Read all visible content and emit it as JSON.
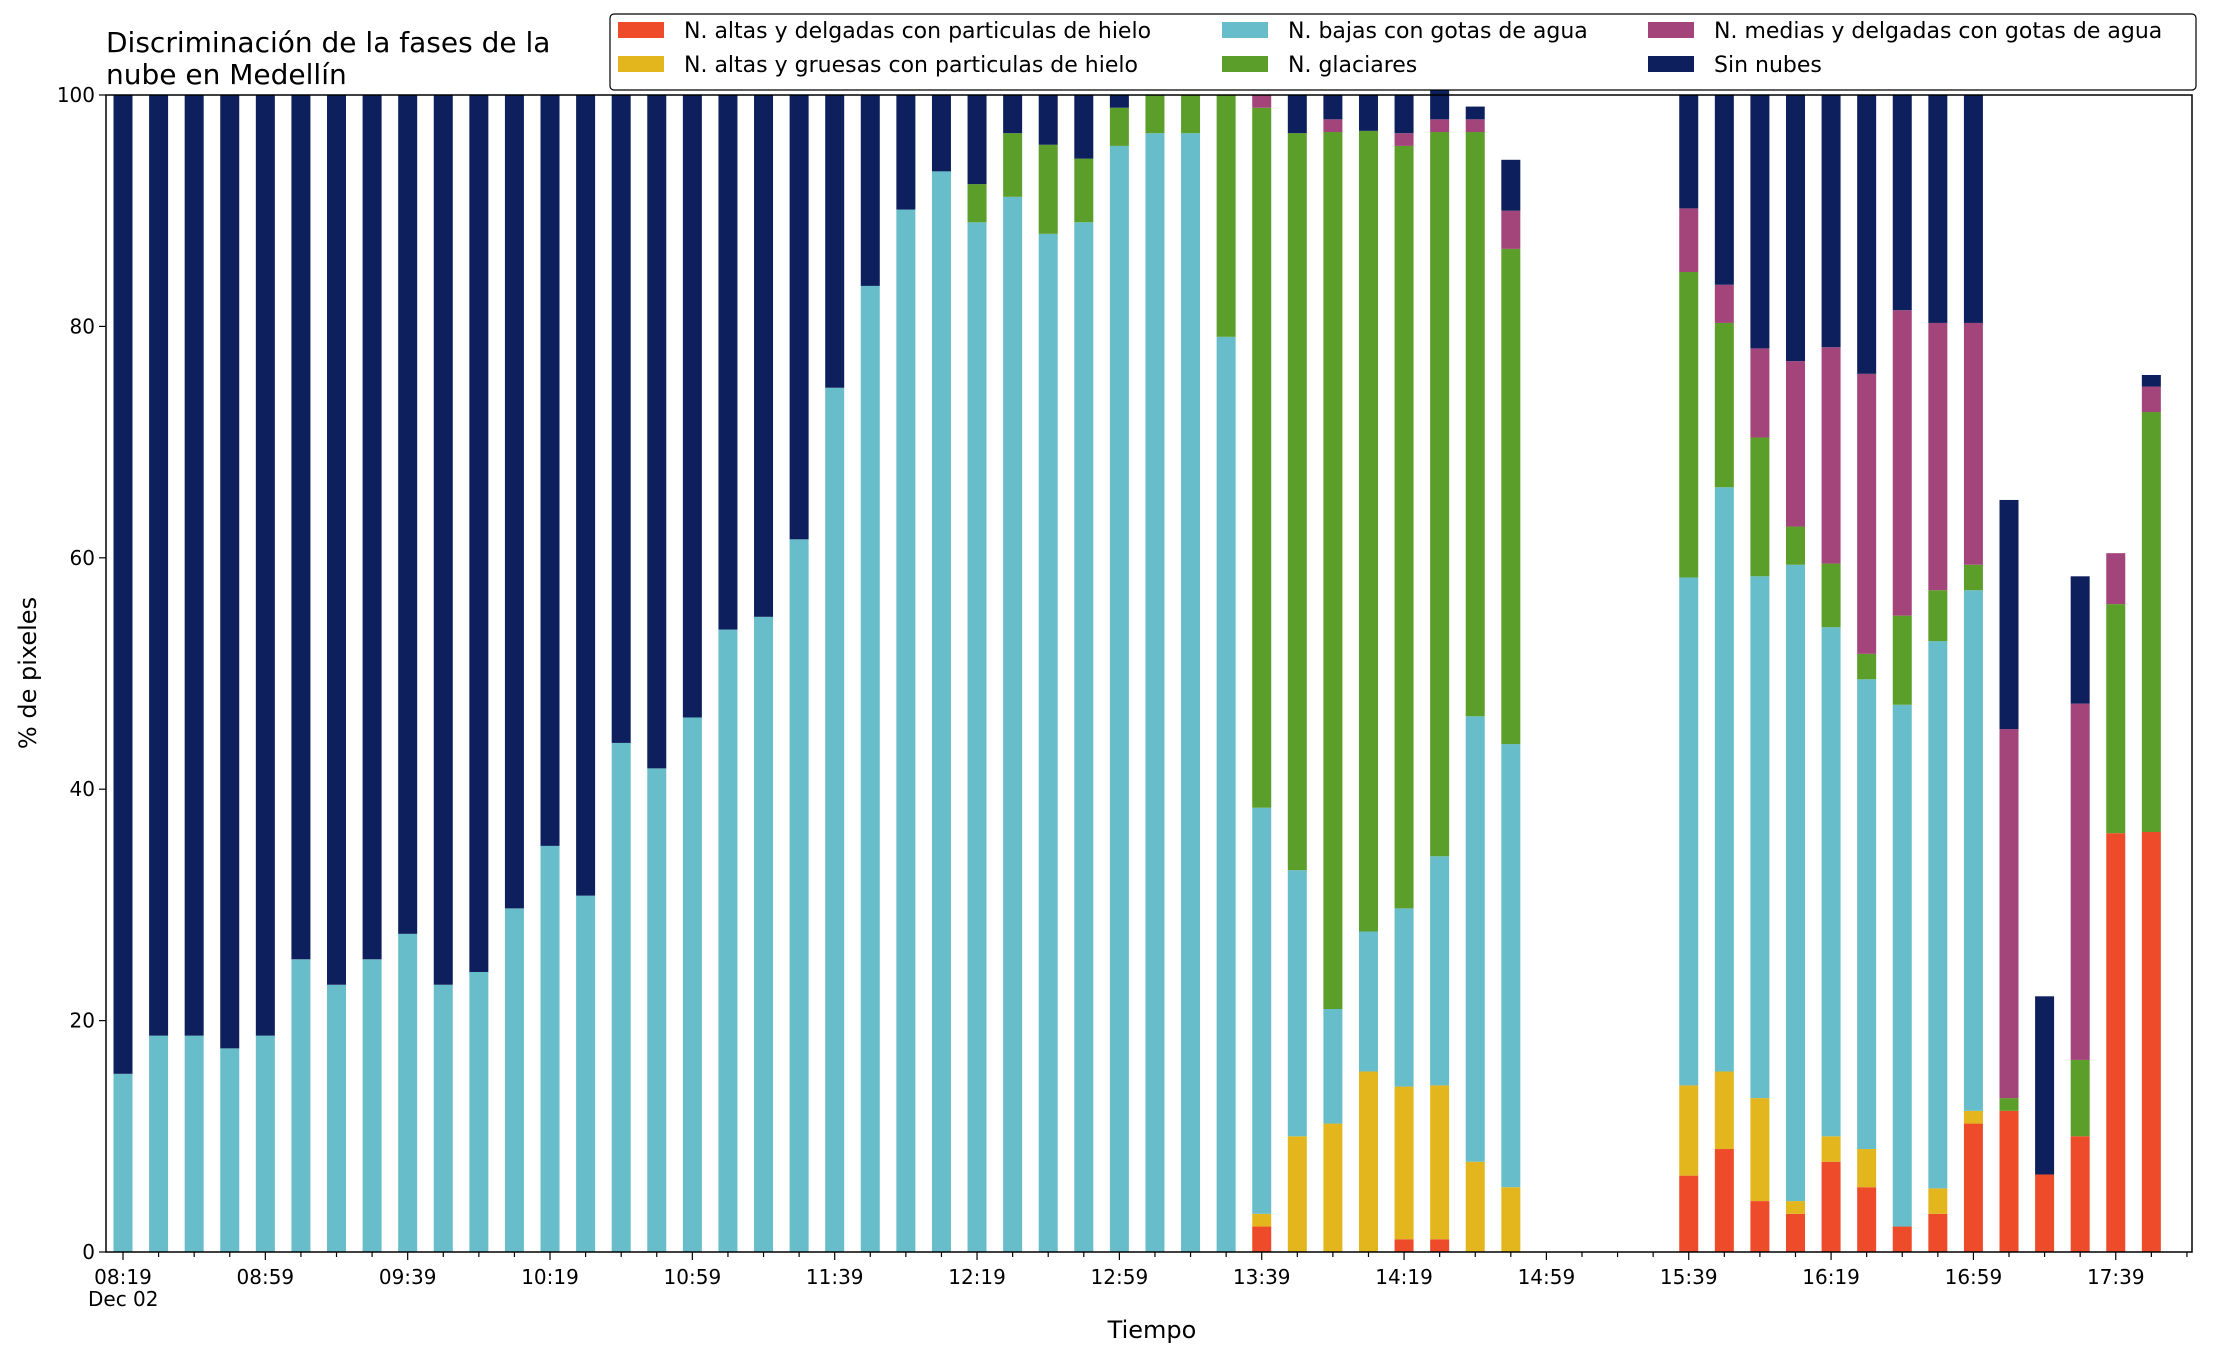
{
  "chart_data": {
    "type": "bar",
    "stacked": true,
    "title_lines": [
      "Discriminación de la fases de la",
      "nube en Medellín"
    ],
    "xlabel": "Tiempo",
    "ylabel": "% de pixeles",
    "ylim": [
      0,
      100
    ],
    "yticks": [
      0,
      20,
      40,
      60,
      80,
      100
    ],
    "x_tick_labels": [
      "08:19",
      "08:59",
      "09:39",
      "10:19",
      "10:59",
      "11:39",
      "12:19",
      "12:59",
      "13:39",
      "14:19",
      "14:59",
      "15:39",
      "16:19",
      "16:59",
      "17:39"
    ],
    "x_date_label": "Dec 02",
    "legend_position": "top-right",
    "categories": [
      "08:19",
      "08:29",
      "08:39",
      "08:49",
      "08:59",
      "09:09",
      "09:19",
      "09:29",
      "09:39",
      "09:49",
      "09:59",
      "10:09",
      "10:19",
      "10:29",
      "10:39",
      "10:49",
      "10:59",
      "11:09",
      "11:19",
      "11:29",
      "11:39",
      "11:49",
      "11:59",
      "12:09",
      "12:19",
      "12:29",
      "12:39",
      "12:49",
      "12:59",
      "13:09",
      "13:19",
      "13:29",
      "13:39",
      "13:49",
      "13:59",
      "14:09",
      "14:19",
      "14:29",
      "14:39",
      "14:49",
      "14:59",
      "15:09",
      "15:19",
      "15:29",
      "15:39",
      "15:49",
      "15:59",
      "16:09",
      "16:19",
      "16:29",
      "16:39",
      "16:49",
      "16:59",
      "17:09",
      "17:19",
      "17:29",
      "17:39",
      "17:49"
    ],
    "series": [
      {
        "name": "N. altas y delgadas con particulas de hielo",
        "color": "#ee4b2b",
        "values": [
          0,
          0,
          0,
          0,
          0,
          0,
          0,
          0,
          0,
          0,
          0,
          0,
          0,
          0,
          0,
          0,
          0,
          0,
          0,
          0,
          0,
          0,
          0,
          0,
          0,
          0,
          0,
          0,
          0,
          0,
          0,
          0,
          2.2,
          0,
          0,
          0,
          1.1,
          1.1,
          0,
          0,
          0,
          0,
          0,
          0,
          6.6,
          8.9,
          4.4,
          3.3,
          7.8,
          5.6,
          2.2,
          3.3,
          11.1,
          12.2,
          6.7,
          10.0,
          36.2,
          36.3
        ]
      },
      {
        "name": "N. altas y gruesas con particulas de hielo",
        "color": "#e3b61d",
        "values": [
          0,
          0,
          0,
          0,
          0,
          0,
          0,
          0,
          0,
          0,
          0,
          0,
          0,
          0,
          0,
          0,
          0,
          0,
          0,
          0,
          0,
          0,
          0,
          0,
          0,
          0,
          0,
          0,
          0,
          0,
          0,
          0,
          1.1,
          10.0,
          11.1,
          15.6,
          13.2,
          13.3,
          7.8,
          5.6,
          0,
          0,
          0,
          0,
          7.8,
          6.7,
          8.9,
          1.1,
          2.2,
          3.3,
          0,
          2.2,
          1.1,
          0,
          0,
          0,
          0,
          0
        ]
      },
      {
        "name": "N. bajas con gotas de agua",
        "color": "#67bdc9",
        "values": [
          15.4,
          18.7,
          18.7,
          17.6,
          18.7,
          25.3,
          23.1,
          25.3,
          27.5,
          23.1,
          24.2,
          29.7,
          35.1,
          30.8,
          44.0,
          41.8,
          46.2,
          53.8,
          54.9,
          61.6,
          74.7,
          83.5,
          90.1,
          93.4,
          89.0,
          91.2,
          88.0,
          89.0,
          95.6,
          96.7,
          96.7,
          79.1,
          35.1,
          23.0,
          9.9,
          12.1,
          15.4,
          19.8,
          38.5,
          38.3,
          0,
          0,
          0,
          0,
          43.9,
          50.5,
          45.1,
          55.0,
          44.0,
          40.6,
          45.1,
          47.3,
          45.0,
          0,
          0,
          0,
          0,
          0
        ]
      },
      {
        "name": "N. glaciares",
        "color": "#5c9e2a",
        "values": [
          0,
          0,
          0,
          0,
          0,
          0,
          0,
          0,
          0,
          0,
          0,
          0,
          0,
          0,
          0,
          0,
          0,
          0,
          0,
          0,
          0,
          0,
          0,
          0,
          3.3,
          5.5,
          7.7,
          5.5,
          3.3,
          3.3,
          3.3,
          20.9,
          60.5,
          63.7,
          75.8,
          69.2,
          65.9,
          62.6,
          50.5,
          42.8,
          0,
          0,
          0,
          0,
          26.4,
          14.2,
          12.0,
          3.3,
          5.5,
          2.2,
          7.7,
          4.4,
          2.2,
          1.1,
          0,
          6.6,
          19.8,
          36.3
        ]
      },
      {
        "name": "N. medias y delgadas con gotas de agua",
        "color": "#a3457b",
        "values": [
          0,
          0,
          0,
          0,
          0,
          0,
          0,
          0,
          0,
          0,
          0,
          0,
          0,
          0,
          0,
          0,
          0,
          0,
          0,
          0,
          0,
          0,
          0,
          0,
          0,
          0,
          0,
          0,
          0,
          0,
          0,
          0,
          1.1,
          0,
          1.1,
          0,
          1.1,
          1.1,
          1.1,
          3.3,
          0,
          0,
          0,
          0,
          5.5,
          3.3,
          7.7,
          14.3,
          18.7,
          24.2,
          26.4,
          23.1,
          20.9,
          31.9,
          0,
          30.8,
          4.4,
          2.2
        ]
      },
      {
        "name": "Sin nubes",
        "color": "#0d1f5c",
        "values": [
          84.6,
          81.3,
          81.3,
          82.4,
          81.3,
          74.7,
          76.9,
          74.7,
          72.5,
          76.9,
          75.8,
          70.3,
          64.9,
          69.2,
          56.0,
          58.2,
          53.8,
          46.2,
          45.1,
          38.4,
          25.3,
          16.5,
          9.9,
          6.6,
          7.7,
          3.3,
          4.3,
          5.5,
          1.1,
          0,
          0,
          0,
          0,
          3.3,
          2.1,
          3.1,
          3.3,
          3.3,
          1.1,
          4.4,
          0,
          0,
          0,
          0,
          9.8,
          16.4,
          21.9,
          23.0,
          21.8,
          24.1,
          18.6,
          19.7,
          19.7,
          19.8,
          15.4,
          11.0,
          0,
          1.0
        ]
      }
    ]
  }
}
